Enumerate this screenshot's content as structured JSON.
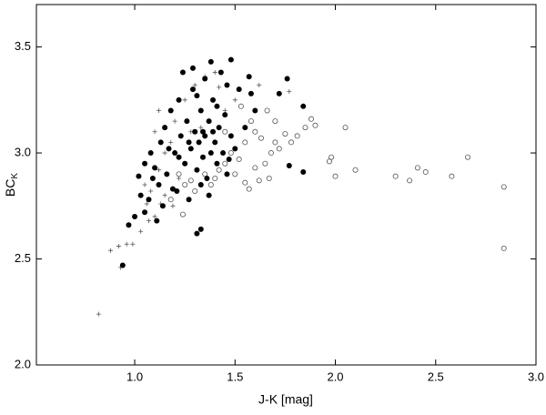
{
  "chart_data": {
    "type": "scatter",
    "x_label": "J-K [mag]",
    "y_label": "BC",
    "y_label_subscript": "K",
    "xlim": [
      0.51,
      3.0
    ],
    "ylim": [
      2.0,
      3.7
    ],
    "xticks": [
      {
        "value": 1,
        "label": "1.0"
      },
      1.5,
      {
        "value": 2,
        "label": "2.0"
      },
      2.5,
      {
        "value": 3,
        "label": "3.0"
      }
    ],
    "yticks": [
      {
        "value": 2,
        "label": "2.0"
      },
      2.5,
      {
        "value": 3,
        "label": "3.0"
      },
      3.5
    ],
    "series": [
      {
        "marker": "plus",
        "color": "#555555",
        "x": [
          0.82,
          0.88,
          0.92,
          0.96,
          0.99,
          1.03,
          1.07,
          1.1,
          1.13,
          1.08,
          1.12,
          1.15,
          1.1,
          1.12,
          1.18,
          1.2,
          1.25,
          1.3,
          1.35,
          1.4,
          1.45,
          1.42,
          1.62,
          1.77,
          1.25,
          1.05,
          0.93,
          1.15,
          1.22,
          1.5,
          1.28,
          1.19,
          1.33,
          1.06
        ],
        "values": [
          2.24,
          2.54,
          2.56,
          2.57,
          2.57,
          2.63,
          2.68,
          2.7,
          2.76,
          2.82,
          2.92,
          3.0,
          3.1,
          3.2,
          3.05,
          3.15,
          3.25,
          3.32,
          3.36,
          3.38,
          3.2,
          3.31,
          3.32,
          3.29,
          2.95,
          2.85,
          2.46,
          2.8,
          2.88,
          3.25,
          3.1,
          2.75,
          3.12,
          2.76
        ]
      },
      {
        "marker": "open",
        "color": "#555555",
        "x": [
          2.05,
          1.98,
          1.97,
          2.0,
          2.1,
          2.3,
          2.37,
          2.41,
          2.45,
          2.58,
          2.66,
          2.84,
          2.84,
          1.88,
          1.9,
          1.85,
          1.81,
          1.78,
          1.75,
          1.72,
          1.7,
          1.68,
          1.65,
          1.63,
          1.6,
          1.58,
          1.55,
          1.52,
          1.5,
          1.48,
          1.45,
          1.42,
          1.4,
          1.38,
          1.35,
          1.3,
          1.28,
          1.25,
          1.22,
          1.18,
          1.24,
          1.62,
          1.67,
          1.57,
          1.53,
          1.66,
          1.6,
          1.45,
          1.55,
          1.7
        ],
        "values": [
          3.12,
          2.98,
          2.96,
          2.89,
          2.92,
          2.89,
          2.87,
          2.93,
          2.91,
          2.89,
          2.98,
          2.84,
          2.55,
          3.16,
          3.13,
          3.12,
          3.08,
          3.05,
          3.09,
          3.02,
          3.05,
          3.0,
          2.95,
          3.07,
          3.1,
          3.15,
          3.05,
          2.97,
          2.9,
          3.0,
          2.95,
          2.92,
          2.88,
          2.85,
          2.9,
          2.82,
          2.87,
          2.85,
          2.9,
          2.78,
          2.71,
          2.87,
          2.88,
          2.83,
          3.22,
          3.2,
          2.93,
          3.1,
          2.86,
          3.15
        ]
      },
      {
        "marker": "filled",
        "color": "#000000",
        "x": [
          0.94,
          1.31,
          1.33,
          1.48,
          1.38,
          1.76,
          1.72,
          1.84,
          1.84,
          1.77,
          1.0,
          0.97,
          1.05,
          1.03,
          1.02,
          1.05,
          1.08,
          1.1,
          1.12,
          1.13,
          1.15,
          1.16,
          1.18,
          1.2,
          1.21,
          1.22,
          1.23,
          1.25,
          1.26,
          1.27,
          1.28,
          1.29,
          1.3,
          1.31,
          1.32,
          1.33,
          1.34,
          1.35,
          1.35,
          1.36,
          1.37,
          1.38,
          1.39,
          1.4,
          1.41,
          1.42,
          1.44,
          1.45,
          1.46,
          1.48,
          1.5,
          1.52,
          1.55,
          1.58,
          1.6,
          1.14,
          1.11,
          1.09,
          1.19,
          1.24,
          1.31,
          1.29,
          1.43,
          1.57,
          1.46,
          1.37,
          1.34,
          1.27,
          1.22,
          1.17,
          1.07,
          1.41,
          1.33,
          1.47,
          1.39
        ],
        "values": [
          2.47,
          2.62,
          2.64,
          3.44,
          3.43,
          3.35,
          3.28,
          3.22,
          2.91,
          2.94,
          2.7,
          2.66,
          2.72,
          2.8,
          2.89,
          2.95,
          3.0,
          2.93,
          2.85,
          3.05,
          3.12,
          2.9,
          3.2,
          3.0,
          2.82,
          3.25,
          3.08,
          2.95,
          3.15,
          2.78,
          3.02,
          3.3,
          3.1,
          2.92,
          3.05,
          3.2,
          2.98,
          3.35,
          3.08,
          2.88,
          3.15,
          3.0,
          3.25,
          3.05,
          2.95,
          3.12,
          3.0,
          3.18,
          2.9,
          3.08,
          3.02,
          3.3,
          3.12,
          3.28,
          3.2,
          2.75,
          2.68,
          2.88,
          2.83,
          3.38,
          3.27,
          3.4,
          3.38,
          3.36,
          3.32,
          2.8,
          3.1,
          3.05,
          2.98,
          3.02,
          2.78,
          3.22,
          2.85,
          2.97,
          3.1
        ]
      }
    ]
  }
}
